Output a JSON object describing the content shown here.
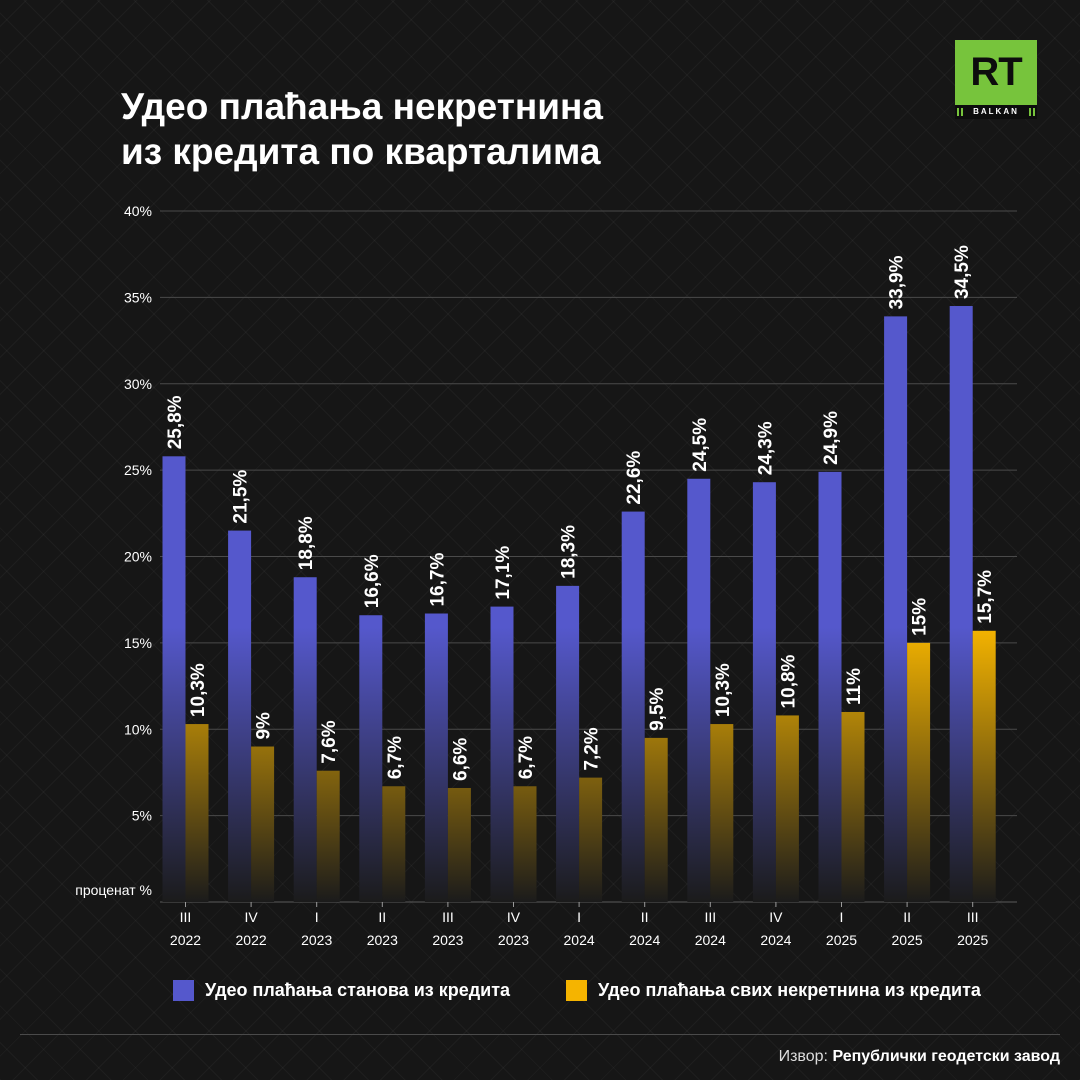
{
  "title_lines": [
    "Удео плаћања некретнина",
    "из кредита по кварталима"
  ],
  "logo": {
    "text": "RT",
    "subtext": "BALKAN"
  },
  "source": {
    "label": "Извор:",
    "name": "Републички геодетски завод"
  },
  "colors": {
    "series1_top": "#5558cc",
    "series2_top": "#f5b400",
    "fade": "#1b1b1b"
  },
  "chart_data": {
    "type": "bar",
    "title": "Удео плаћања некретнина из кредита по кварталима",
    "ylabel": "проценат %",
    "ylim": [
      0,
      40
    ],
    "yticks": [
      5,
      10,
      15,
      20,
      25,
      30,
      35,
      40
    ],
    "ytick_suffix": "%",
    "categories": [
      [
        "III",
        "2022"
      ],
      [
        "IV",
        "2022"
      ],
      [
        "I",
        "2023"
      ],
      [
        "II",
        "2023"
      ],
      [
        "III",
        "2023"
      ],
      [
        "IV",
        "2023"
      ],
      [
        "I",
        "2024"
      ],
      [
        "II",
        "2024"
      ],
      [
        "III",
        "2024"
      ],
      [
        "IV",
        "2024"
      ],
      [
        "I",
        "2025"
      ],
      [
        "II",
        "2025"
      ],
      [
        "III",
        "2025"
      ]
    ],
    "series": [
      {
        "name": "Удео плаћања станова из кредита",
        "values": [
          25.8,
          21.5,
          18.8,
          16.6,
          16.7,
          17.1,
          18.3,
          22.6,
          24.5,
          24.3,
          24.9,
          33.9,
          34.5
        ],
        "labels": [
          "25,8%",
          "21,5%",
          "18,8%",
          "16,6%",
          "16,7%",
          "17,1%",
          "18,3%",
          "22,6%",
          "24,5%",
          "24,3%",
          "24,9%",
          "33,9%",
          "34,5%"
        ]
      },
      {
        "name": "Удео плаћања свих некретнина из кредита",
        "values": [
          10.3,
          9,
          7.6,
          6.7,
          6.6,
          6.7,
          7.2,
          9.5,
          10.3,
          10.8,
          11,
          15,
          15.7
        ],
        "labels": [
          "10,3%",
          "9%",
          "7,6%",
          "6,7%",
          "6,6%",
          "6,7%",
          "7,2%",
          "9,5%",
          "10,3%",
          "10,8%",
          "11%",
          "15%",
          "15,7%"
        ]
      }
    ],
    "grid": true,
    "legend": "bottom-center"
  }
}
